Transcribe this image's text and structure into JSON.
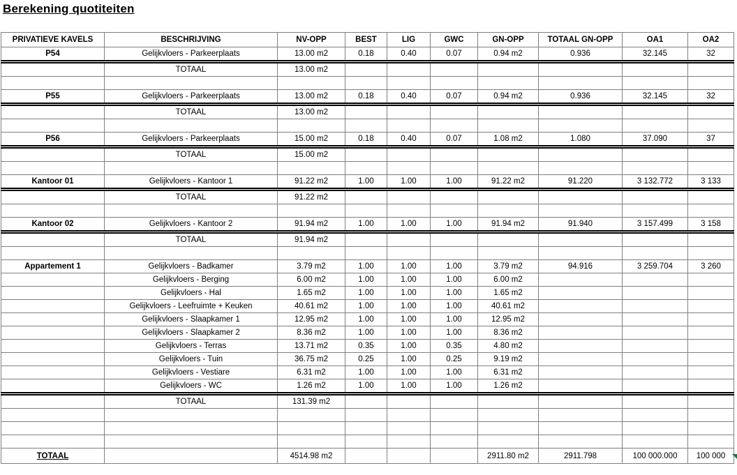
{
  "title": "Berekening quotiteiten",
  "colors": {
    "grid_line": "#7f7f7f",
    "double_line": "#000000",
    "text": "#000000",
    "background": "#ffffff",
    "error_indicator": "#1e7145"
  },
  "icons": {
    "error_indicator": "excel-green-error-triangle"
  },
  "table": {
    "headers": [
      "PRIVATIEVE KAVELS",
      "BESCHRIJVING",
      "NV-OPP",
      "BEST",
      "LIG",
      "GWC",
      "GN-OPP",
      "TOTAAL GN-OPP",
      "OA1",
      "OA2"
    ],
    "rows": [
      {
        "type": "data",
        "cells": [
          "P54",
          "Gelijkvloers - Parkeerplaats",
          "13.00 m2",
          "0.18",
          "0.40",
          "0.07",
          "0.94 m2",
          "0.936",
          "32.145",
          "32"
        ]
      },
      {
        "type": "total",
        "cells": [
          "",
          "TOTAAL",
          "13.00 m2",
          "",
          "",
          "",
          "",
          "",
          "",
          ""
        ]
      },
      {
        "type": "empty",
        "cells": [
          "",
          "",
          "",
          "",
          "",
          "",
          "",
          "",
          "",
          ""
        ]
      },
      {
        "type": "data",
        "cells": [
          "P55",
          "Gelijkvloers - Parkeerplaats",
          "13.00 m2",
          "0.18",
          "0.40",
          "0.07",
          "0.94 m2",
          "0.936",
          "32.145",
          "32"
        ]
      },
      {
        "type": "total",
        "cells": [
          "",
          "TOTAAL",
          "13.00 m2",
          "",
          "",
          "",
          "",
          "",
          "",
          ""
        ]
      },
      {
        "type": "empty",
        "cells": [
          "",
          "",
          "",
          "",
          "",
          "",
          "",
          "",
          "",
          ""
        ]
      },
      {
        "type": "data",
        "cells": [
          "P56",
          "Gelijkvloers - Parkeerplaats",
          "15.00 m2",
          "0.18",
          "0.40",
          "0.07",
          "1.08 m2",
          "1.080",
          "37.090",
          "37"
        ]
      },
      {
        "type": "total",
        "cells": [
          "",
          "TOTAAL",
          "15.00 m2",
          "",
          "",
          "",
          "",
          "",
          "",
          ""
        ]
      },
      {
        "type": "empty",
        "cells": [
          "",
          "",
          "",
          "",
          "",
          "",
          "",
          "",
          "",
          ""
        ]
      },
      {
        "type": "data",
        "cells": [
          "Kantoor 01",
          "Gelijkvloers - Kantoor 1",
          "91.22 m2",
          "1.00",
          "1.00",
          "1.00",
          "91.22 m2",
          "91.220",
          "3 132.772",
          "3 133"
        ]
      },
      {
        "type": "total",
        "cells": [
          "",
          "TOTAAL",
          "91.22 m2",
          "",
          "",
          "",
          "",
          "",
          "",
          ""
        ]
      },
      {
        "type": "empty",
        "cells": [
          "",
          "",
          "",
          "",
          "",
          "",
          "",
          "",
          "",
          ""
        ]
      },
      {
        "type": "data",
        "cells": [
          "Kantoor 02",
          "Gelijkvloers - Kantoor 2",
          "91.94 m2",
          "1.00",
          "1.00",
          "1.00",
          "91.94 m2",
          "91.940",
          "3 157.499",
          "3 158"
        ]
      },
      {
        "type": "total",
        "cells": [
          "",
          "TOTAAL",
          "91.94 m2",
          "",
          "",
          "",
          "",
          "",
          "",
          ""
        ]
      },
      {
        "type": "empty",
        "cells": [
          "",
          "",
          "",
          "",
          "",
          "",
          "",
          "",
          "",
          ""
        ]
      },
      {
        "type": "data",
        "cells": [
          "Appartement 1",
          "Gelijkvloers - Badkamer",
          "3.79 m2",
          "1.00",
          "1.00",
          "1.00",
          "3.79 m2",
          "94.916",
          "3 259.704",
          "3 260"
        ]
      },
      {
        "type": "data",
        "cells": [
          "",
          "Gelijkvloers - Berging",
          "6.00 m2",
          "1.00",
          "1.00",
          "1.00",
          "6.00 m2",
          "",
          "",
          ""
        ]
      },
      {
        "type": "data",
        "cells": [
          "",
          "Gelijkvloers - Hal",
          "1.65 m2",
          "1.00",
          "1.00",
          "1.00",
          "1.65 m2",
          "",
          "",
          ""
        ]
      },
      {
        "type": "data",
        "cells": [
          "",
          "Gelijkvloers - Leefruimte + Keuken",
          "40.61 m2",
          "1.00",
          "1.00",
          "1.00",
          "40.61 m2",
          "",
          "",
          ""
        ]
      },
      {
        "type": "data",
        "cells": [
          "",
          "Gelijkvloers - Slaapkamer 1",
          "12.95 m2",
          "1.00",
          "1.00",
          "1.00",
          "12.95 m2",
          "",
          "",
          ""
        ]
      },
      {
        "type": "data",
        "cells": [
          "",
          "Gelijkvloers - Slaapkamer 2",
          "8.36 m2",
          "1.00",
          "1.00",
          "1.00",
          "8.36 m2",
          "",
          "",
          ""
        ]
      },
      {
        "type": "data",
        "cells": [
          "",
          "Gelijkvloers - Terras",
          "13.71 m2",
          "0.35",
          "1.00",
          "0.35",
          "4.80 m2",
          "",
          "",
          ""
        ]
      },
      {
        "type": "data",
        "cells": [
          "",
          "Gelijkvloers - Tuin",
          "36.75 m2",
          "0.25",
          "1.00",
          "0.25",
          "9.19 m2",
          "",
          "",
          ""
        ]
      },
      {
        "type": "data",
        "cells": [
          "",
          "Gelijkvloers - Vestiare",
          "6.31 m2",
          "1.00",
          "1.00",
          "1.00",
          "6.31 m2",
          "",
          "",
          ""
        ]
      },
      {
        "type": "data",
        "cells": [
          "",
          "Gelijkvloers - WC",
          "1.26 m2",
          "1.00",
          "1.00",
          "1.00",
          "1.26 m2",
          "",
          "",
          ""
        ]
      },
      {
        "type": "total",
        "cells": [
          "",
          "TOTAAL",
          "131.39 m2",
          "",
          "",
          "",
          "",
          "",
          "",
          ""
        ]
      },
      {
        "type": "empty",
        "cells": [
          "",
          "",
          "",
          "",
          "",
          "",
          "",
          "",
          "",
          ""
        ]
      },
      {
        "type": "empty",
        "cells": [
          "",
          "",
          "",
          "",
          "",
          "",
          "",
          "",
          "",
          ""
        ]
      },
      {
        "type": "empty",
        "cells": [
          "",
          "",
          "",
          "",
          "",
          "",
          "",
          "",
          "",
          ""
        ]
      },
      {
        "type": "grand",
        "cells": [
          "TOTAAL",
          "",
          "4514.98 m2",
          "",
          "",
          "",
          "2911.80 m2",
          "2911.798",
          "100 000.000",
          "100 000"
        ]
      }
    ]
  }
}
